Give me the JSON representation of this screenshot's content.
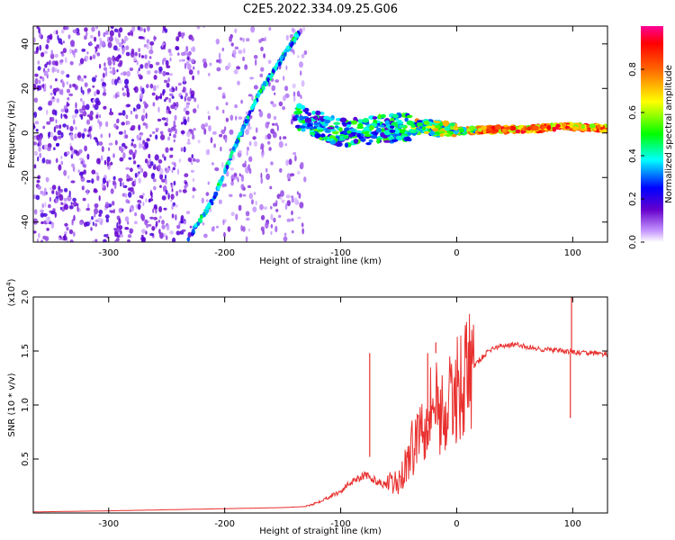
{
  "figure": {
    "title": "C2E5.2022.334.09.25.G06"
  },
  "chart_data": [
    {
      "type": "heatmap",
      "xlabel": "Height of straight line (km)",
      "ylabel": "Frequency (Hz)",
      "xlim": [
        -365,
        130
      ],
      "ylim": [
        -49,
        48
      ],
      "xticks": [
        -300,
        -200,
        -100,
        0,
        100
      ],
      "yticks": [
        -40,
        -20,
        0,
        20,
        40
      ],
      "colorbar": {
        "label": "Normalized spectral amplitude",
        "range": [
          0.0,
          1.0
        ],
        "ticks": [
          0.0,
          0.2,
          0.4,
          0.6,
          0.8
        ],
        "colors": [
          "#ffffff",
          "#8a2be2",
          "#0000ff",
          "#00c8ff",
          "#00ff00",
          "#ffff00",
          "#ff8000",
          "#ff0000",
          "#ff0090"
        ]
      },
      "features": [
        {
          "name": "noise",
          "x_range": [
            -365,
            -130
          ],
          "freq_range": [
            -49,
            48
          ],
          "amplitude": 0.15
        },
        {
          "name": "sloped-track",
          "x": [
            -232,
            -210,
            -190,
            -170,
            -150,
            -135
          ],
          "freq": [
            -48,
            -30,
            -5,
            18,
            34,
            46
          ],
          "amplitude": 0.4
        },
        {
          "name": "main-carrier",
          "x": [
            -140,
            -100,
            -60,
            -30,
            0,
            30,
            60,
            90,
            130
          ],
          "freq": [
            8,
            0,
            2,
            3,
            1,
            1.5,
            1.5,
            3,
            2
          ],
          "amplitude": 0.9
        }
      ]
    },
    {
      "type": "line",
      "xlabel": "Height of straight line (km)",
      "ylabel": "SNR (10 * v/v)",
      "y_multiplier": "(x10",
      "y_multiplier_exp": "4",
      "y_multiplier_close": ")",
      "xlim": [
        -365,
        130
      ],
      "ylim": [
        0,
        2.0
      ],
      "xticks": [
        -300,
        -200,
        -100,
        0,
        100
      ],
      "yticks": [
        0.5,
        1.0,
        1.5,
        2.0
      ],
      "ytick_labels": [
        "0.5",
        "1.0",
        "1.5",
        "2.0"
      ],
      "color": "#e8312f",
      "x": [
        -365,
        -300,
        -250,
        -200,
        -150,
        -130,
        -120,
        -110,
        -100,
        -90,
        -80,
        -70,
        -60,
        -50,
        -40,
        -30,
        -20,
        -10,
        0,
        10,
        20,
        30,
        40,
        50,
        60,
        70,
        80,
        90,
        100,
        110,
        120,
        130
      ],
      "y": [
        0.01,
        0.02,
        0.03,
        0.04,
        0.05,
        0.06,
        0.1,
        0.15,
        0.2,
        0.3,
        0.35,
        0.3,
        0.25,
        0.28,
        0.55,
        0.85,
        1.05,
        0.9,
        1.15,
        1.3,
        1.42,
        1.52,
        1.55,
        1.56,
        1.54,
        1.52,
        1.51,
        1.5,
        1.49,
        1.48,
        1.48,
        1.47
      ],
      "spikes": [
        {
          "x": -18,
          "y": 1.58
        },
        {
          "x": -25,
          "y": 0.85
        },
        {
          "x": -75,
          "y": 0.52
        },
        {
          "x": 99,
          "y": 2.0
        },
        {
          "x": 98,
          "y": 0.88
        }
      ]
    }
  ]
}
